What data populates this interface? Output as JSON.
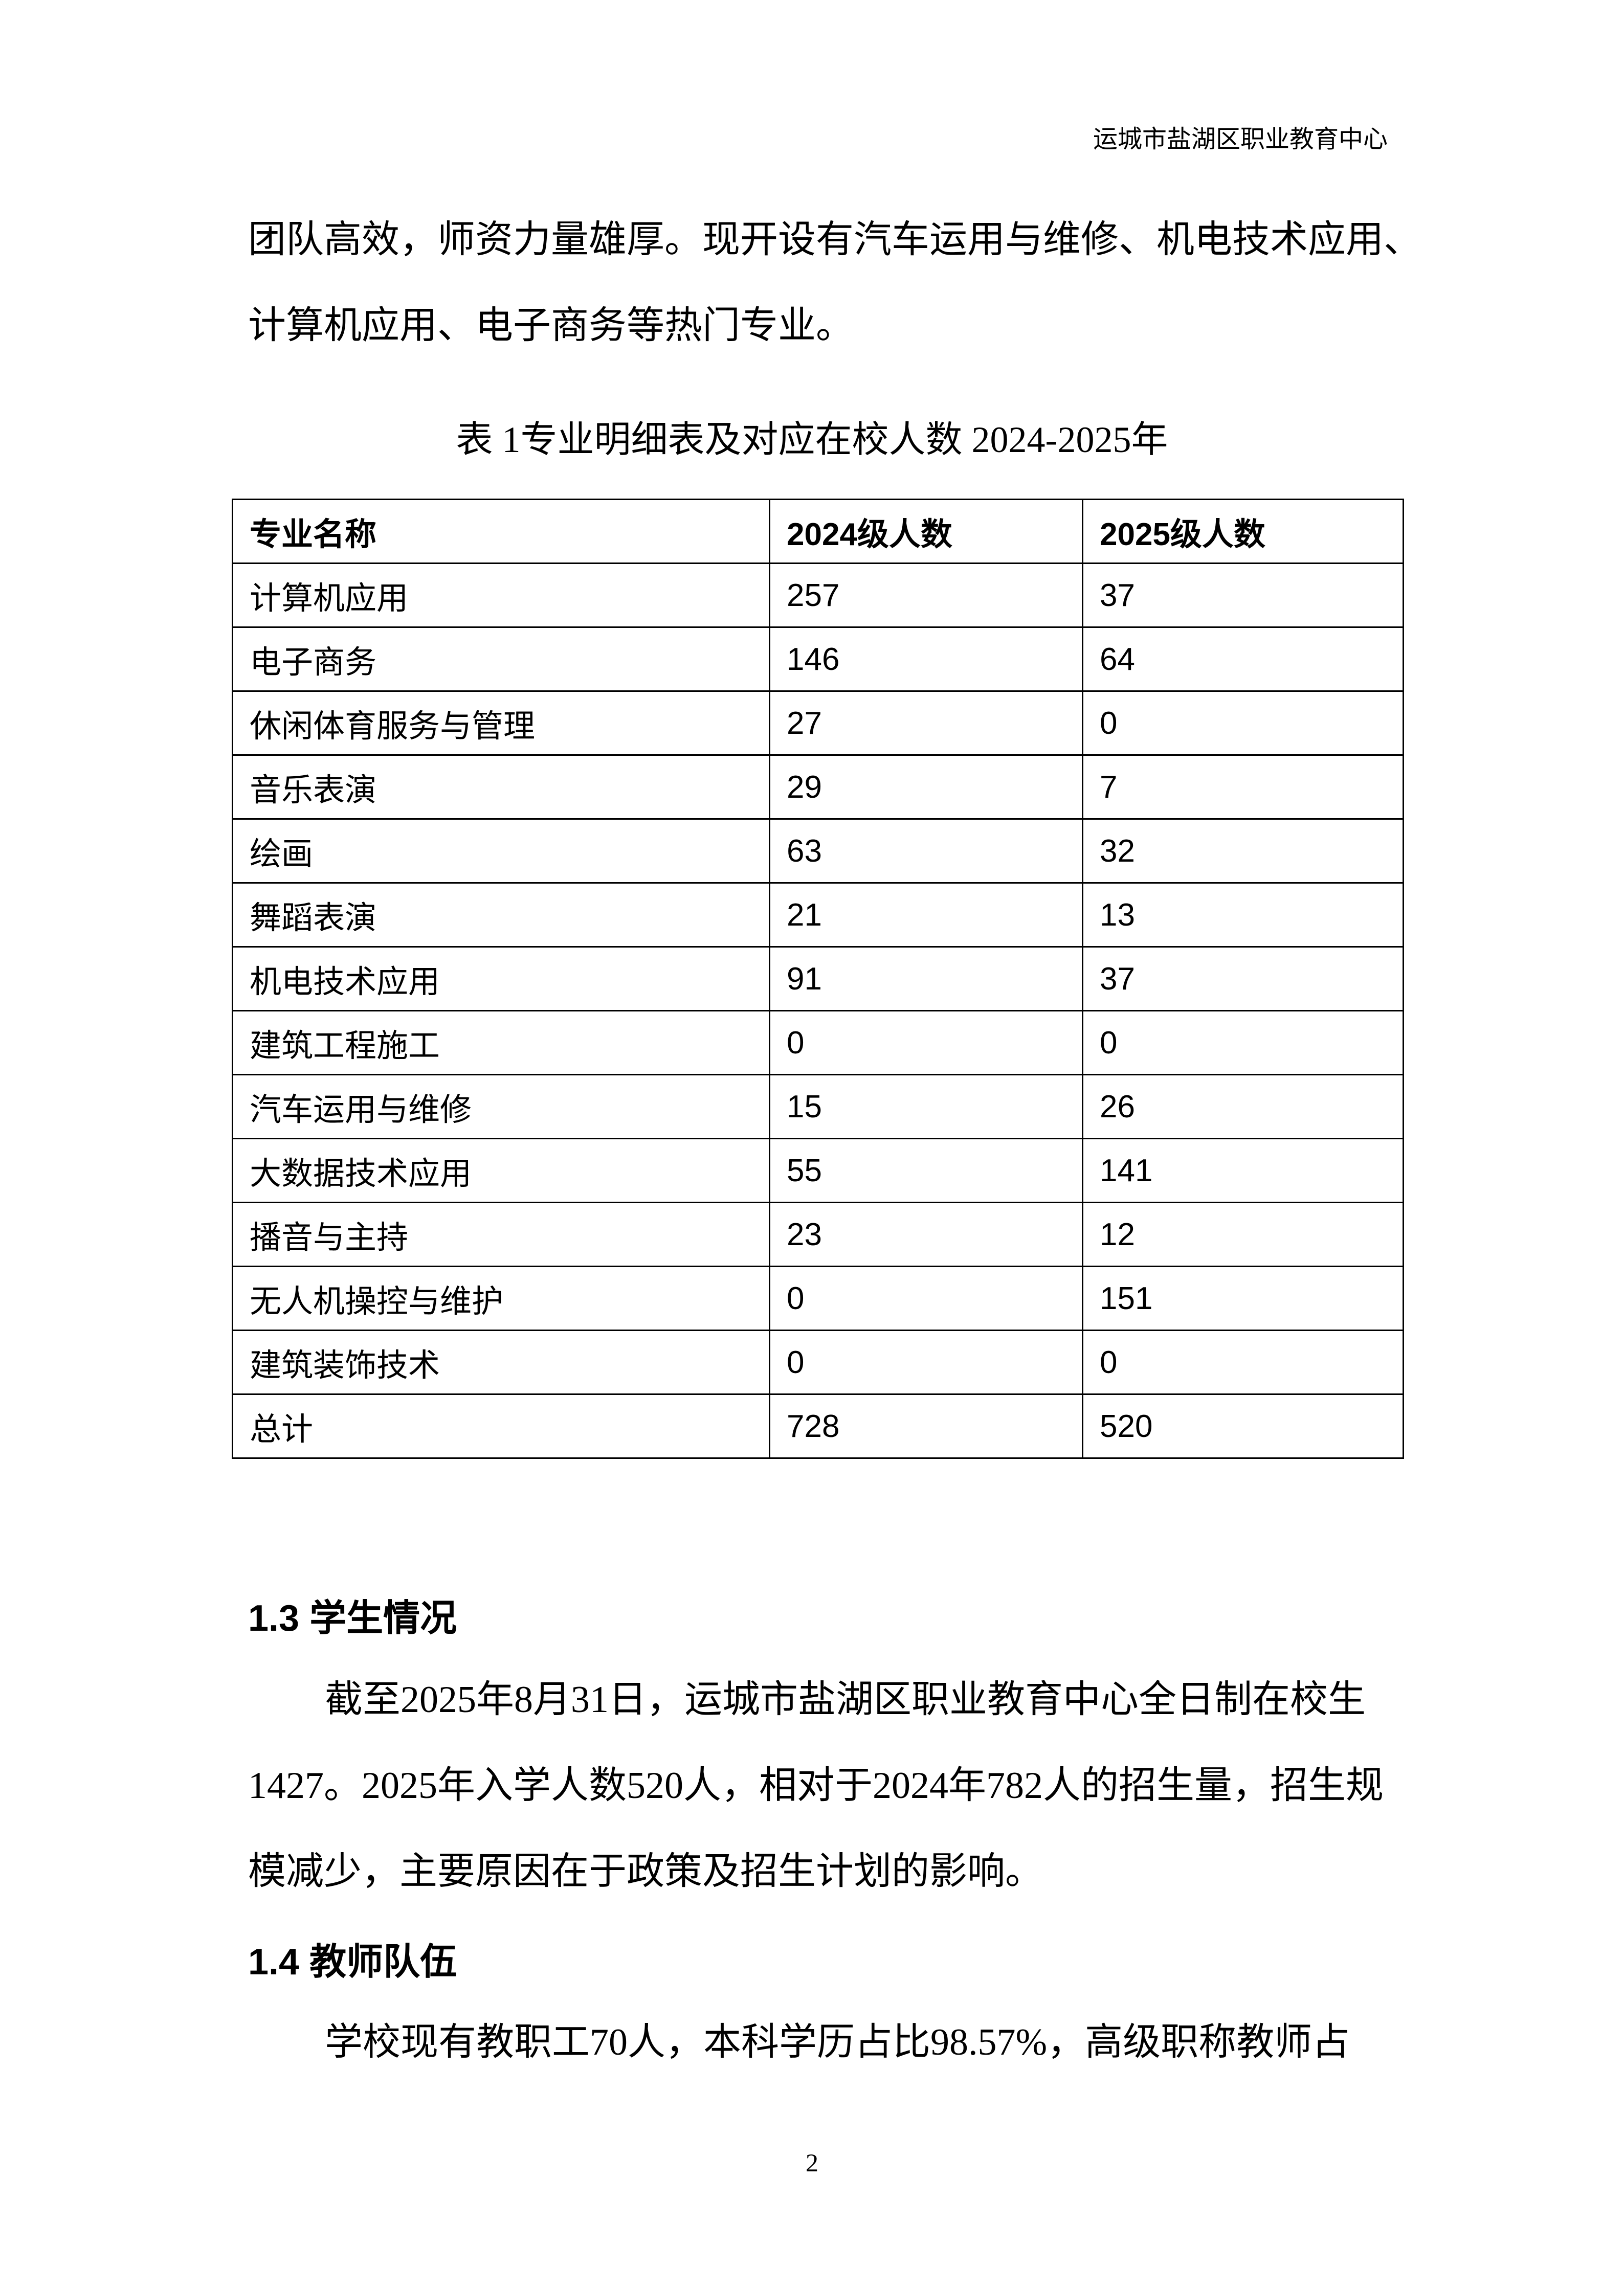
{
  "header": {
    "org": "运城市盐湖区职业教育中心"
  },
  "intro_paragraph": {
    "lines": [
      "团队高效，师资力量雄厚。现开设有汽车运用与维修、机电技术应用、",
      "计算机应用、电子商务等热门专业。"
    ]
  },
  "table": {
    "caption": "表 1专业明细表及对应在校人数 2024-2025年",
    "headers": [
      "专业名称",
      "2024级人数",
      "2025级人数"
    ],
    "rows": [
      [
        "计算机应用",
        "257",
        "37"
      ],
      [
        "电子商务",
        "146",
        "64"
      ],
      [
        "休闲体育服务与管理",
        "27",
        "0"
      ],
      [
        "音乐表演",
        "29",
        "7"
      ],
      [
        "绘画",
        "63",
        "32"
      ],
      [
        "舞蹈表演",
        "21",
        "13"
      ],
      [
        "机电技术应用",
        "91",
        "37"
      ],
      [
        "建筑工程施工",
        "0",
        "0"
      ],
      [
        "汽车运用与维修",
        "15",
        "26"
      ],
      [
        "大数据技术应用",
        "55",
        "141"
      ],
      [
        "播音与主持",
        "23",
        "12"
      ],
      [
        "无人机操控与维护",
        "0",
        "151"
      ],
      [
        "建筑装饰技术",
        "0",
        "0"
      ],
      [
        "总计",
        "728",
        "520"
      ]
    ]
  },
  "section_1_3": {
    "heading": "1.3 学生情况",
    "paragraph": "截至2025年8月31日，运城市盐湖区职业教育中心全日制在校生1427。2025年入学人数520人，相对于2024年782人的招生量，招生规模减少，主要原因在于政策及招生计划的影响。"
  },
  "section_1_4": {
    "heading": "1.4 教师队伍",
    "paragraph": "学校现有教职工70人，本科学历占比98.57%，高级职称教师占"
  },
  "footer": {
    "page_number": "2"
  }
}
